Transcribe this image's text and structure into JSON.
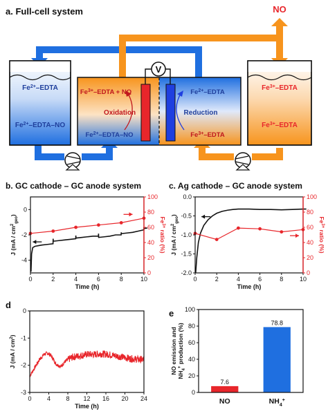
{
  "figure": {
    "panel_a": {
      "label": "a. Full-cell system",
      "no_output": "NO",
      "voltmeter": "V",
      "left_tank": {
        "top_html": "Fe<tspan baseline-shift='super' font-size='7'>2+</tspan>–EDTA",
        "bottom_html": "Fe<tspan baseline-shift='super' font-size='7'>2+</tspan>–EDTA–NO"
      },
      "cell_left": {
        "top_html": "Fe<tspan baseline-shift='super' font-size='7'>3+</tspan>–EDTA + NO",
        "mid": "Oxidation",
        "bottom_html": "Fe<tspan baseline-shift='super' font-size='7'>2+</tspan>–EDTA–NO"
      },
      "cell_right": {
        "top_html": "Fe<tspan baseline-shift='super' font-size='7'>2+</tspan>–EDTA",
        "mid": "Reduction",
        "bottom_html": "Fe<tspan baseline-shift='super' font-size='7'>3+</tspan>–EDTA"
      },
      "right_tank": {
        "top_html": "Fe<tspan baseline-shift='super' font-size='7'>3+</tspan>–EDTA",
        "bottom_html": "Fe<tspan baseline-shift='super' font-size='7'>3+</tspan>–EDTA"
      }
    },
    "panel_b_title": "b. GC cathode – GC anode system",
    "panel_c_title": "c. Ag cathode – GC anode system",
    "panel_d_label": "d",
    "panel_e_label": "e"
  },
  "colors": {
    "blue": "#1f6fe0",
    "orange": "#f7941d",
    "red": "#e8262b",
    "black": "#111111"
  },
  "chart_data": [
    {
      "id": "b",
      "type": "line",
      "title": "b. GC cathode – GC anode system",
      "xlabel": "Time (h)",
      "ylabel_html": "J (mA / cm<tspan baseline-shift='super' font-size='6'>2</tspan><tspan baseline-shift='sub' font-size='6'>geo</tspan>)",
      "y2label_html": "Fe<tspan baseline-shift='super' font-size='6'>3+</tspan> ratio (%)",
      "xlim": [
        0,
        10
      ],
      "ylim": [
        -5,
        1
      ],
      "y2lim": [
        0,
        100
      ],
      "xticks": [
        0,
        2,
        4,
        6,
        8,
        10
      ],
      "yticks": [
        -4,
        -2,
        0
      ],
      "y2ticks": [
        0,
        20,
        40,
        60,
        80,
        100
      ],
      "series": [
        {
          "axis": "left",
          "style": "line",
          "color": "#111111",
          "x": [
            0.05,
            0.1,
            0.2,
            0.4,
            0.7,
            1,
            1.5,
            1.99,
            2.0,
            2.01,
            2.5,
            3,
            3.5,
            3.99,
            4.0,
            4.01,
            4.5,
            5,
            5.5,
            5.99,
            6.0,
            6.01,
            6.5,
            7,
            7.5,
            7.99,
            8.0,
            8.01,
            8.5,
            9,
            9.5,
            9.99,
            10.0,
            10.01,
            10.3
          ],
          "y": [
            -4.9,
            -3.5,
            -3.0,
            -2.9,
            -2.85,
            -2.8,
            -2.75,
            -2.7,
            -2.3,
            -2.5,
            -2.45,
            -2.4,
            -2.35,
            -2.3,
            -2.05,
            -2.25,
            -2.2,
            -2.15,
            -2.1,
            -2.1,
            -1.9,
            -2.2,
            -2.15,
            -2.1,
            -2.0,
            -2.0,
            -1.8,
            -1.9,
            -1.85,
            -1.8,
            -1.7,
            -1.6,
            -1.4,
            -1.5,
            -1.45
          ]
        },
        {
          "axis": "right",
          "style": "markers",
          "color": "#e8262b",
          "x": [
            0,
            2,
            4,
            6,
            8,
            10
          ],
          "y": [
            52,
            55,
            60,
            63,
            66,
            72
          ]
        }
      ],
      "arrows": [
        {
          "axis": "left",
          "x": 0.6,
          "y": -2.55,
          "dir": "left",
          "color": "#111111"
        },
        {
          "axis": "right",
          "x": 8.6,
          "y": 77,
          "dir": "right",
          "color": "#e8262b"
        }
      ]
    },
    {
      "id": "c",
      "type": "line",
      "title": "c. Ag cathode – GC anode system",
      "xlabel": "Time (h)",
      "ylabel_html": "J (mA / cm<tspan baseline-shift='super' font-size='6'>2</tspan><tspan baseline-shift='sub' font-size='6'>geo</tspan>)",
      "y2label_html": "Fe<tspan baseline-shift='super' font-size='6'>3+</tspan> ratio (%)",
      "xlim": [
        0,
        10
      ],
      "ylim": [
        -2.0,
        0
      ],
      "y2lim": [
        0,
        100
      ],
      "xticks": [
        0,
        2,
        4,
        6,
        8,
        10
      ],
      "yticks": [
        -2.0,
        -1.5,
        -1.0,
        -0.5,
        0.0
      ],
      "y2ticks": [
        0,
        20,
        40,
        60,
        80,
        100
      ],
      "series": [
        {
          "axis": "left",
          "style": "line",
          "color": "#111111",
          "x": [
            0.05,
            0.15,
            0.3,
            0.5,
            0.8,
            1.2,
            1.6,
            2.0,
            2.5,
            3.0,
            3.5,
            4.0,
            5.0,
            6.0,
            7.0,
            8.0,
            9.0,
            10.0,
            10.3
          ],
          "y": [
            -2.0,
            -1.6,
            -1.2,
            -0.95,
            -0.75,
            -0.6,
            -0.5,
            -0.43,
            -0.38,
            -0.35,
            -0.33,
            -0.32,
            -0.32,
            -0.33,
            -0.33,
            -0.34,
            -0.33,
            -0.32,
            -0.32
          ]
        },
        {
          "axis": "right",
          "style": "markers",
          "color": "#e8262b",
          "x": [
            0,
            2,
            4,
            6,
            8,
            10
          ],
          "y": [
            52,
            44,
            59,
            58,
            54,
            57
          ]
        }
      ],
      "arrows": [
        {
          "axis": "left",
          "x": 1.0,
          "y": -0.52,
          "dir": "left",
          "color": "#111111"
        },
        {
          "axis": "right",
          "x": 9.2,
          "y": 49,
          "dir": "right",
          "color": "#e8262b"
        }
      ]
    },
    {
      "id": "d",
      "type": "line",
      "xlabel": "Time (h)",
      "ylabel_html": "J (mA / cm<tspan baseline-shift='super' font-size='6'>2</tspan>)",
      "xlim": [
        0,
        24
      ],
      "ylim": [
        -3,
        0
      ],
      "xticks": [
        0,
        4,
        8,
        12,
        16,
        20,
        24
      ],
      "yticks": [
        -3,
        -2,
        -1,
        0
      ],
      "series": [
        {
          "axis": "left",
          "style": "band",
          "color": "#e8262b",
          "noise": 0.12,
          "x": [
            0,
            1,
            2,
            3,
            3.8,
            4.5,
            5.5,
            6.5,
            7.5,
            9,
            10.5,
            12,
            13.5,
            15,
            16.5,
            18,
            19.5,
            21,
            22.5,
            24
          ],
          "y": [
            -2.4,
            -2.1,
            -1.8,
            -1.6,
            -1.55,
            -1.65,
            -1.95,
            -2.05,
            -1.85,
            -1.7,
            -1.65,
            -1.6,
            -1.6,
            -1.58,
            -1.6,
            -1.65,
            -1.7,
            -1.75,
            -1.78,
            -1.8
          ]
        }
      ]
    },
    {
      "id": "e",
      "type": "bar",
      "ylabel_line1": "NO emission and",
      "ylabel_line2_html": "NH<tspan baseline-shift='sub' font-size='6'>4</tspan><tspan baseline-shift='super' font-size='6'>+</tspan> production (%)",
      "ylim": [
        0,
        100
      ],
      "yticks": [
        0,
        20,
        40,
        60,
        80,
        100
      ],
      "categories_html": [
        "NO",
        "NH<tspan baseline-shift='sub' font-size='7'>4</tspan><tspan baseline-shift='super' font-size='7'>+</tspan>"
      ],
      "values": [
        7.6,
        78.8
      ],
      "value_labels": [
        "7.6",
        "78.8"
      ],
      "colors": [
        "#e8262b",
        "#1f6fe0"
      ]
    }
  ]
}
